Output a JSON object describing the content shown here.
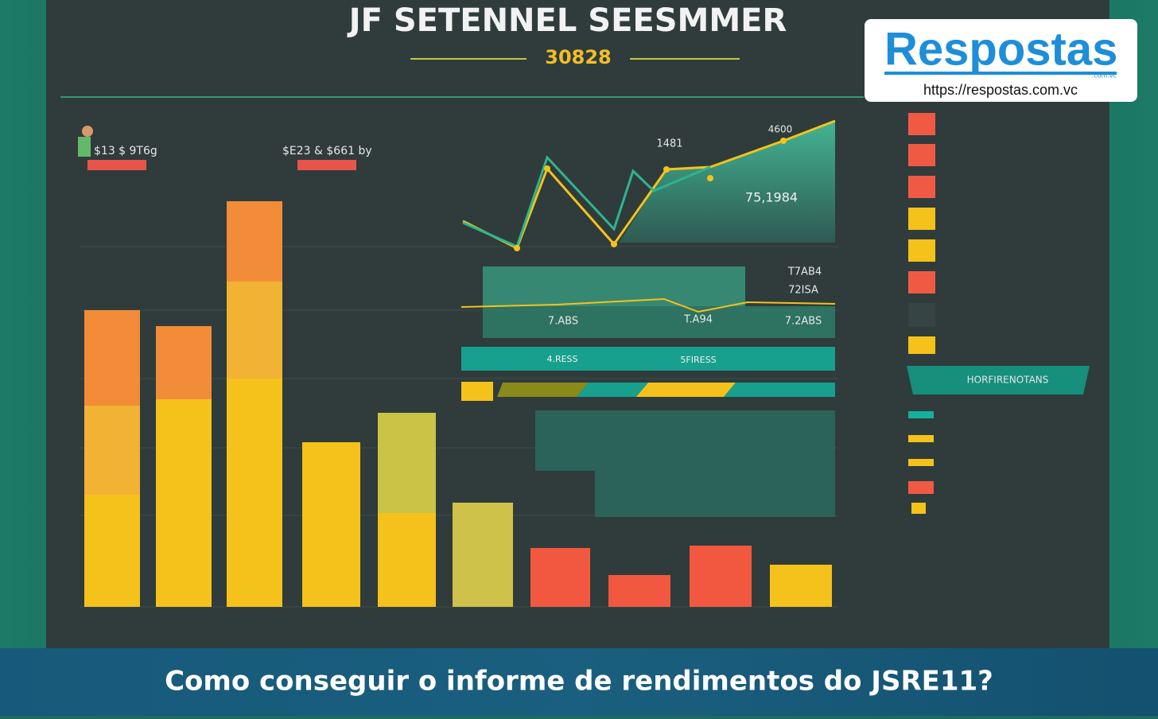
{
  "header": {
    "title": "JF SETENNEL SEESMMER",
    "subtitle": "30828"
  },
  "logo": {
    "brand": "Respostas",
    "suffix": ".com.vc",
    "url": "https://respostas.com.vc"
  },
  "labels": {
    "left_note": "$13 $ 9T6g",
    "mid_note": "$E23 & $661 by",
    "peak": "1481",
    "top": "4600",
    "area_value": "75,1984",
    "row1": "T7AB4",
    "row2": "72ISA",
    "row3a": "7.ABS",
    "row3b": "T.A94",
    "row3c": "7.2ABS",
    "band1": "4.RESS",
    "band2": "5FIRESS",
    "panel": "HORFIRENOTANS"
  },
  "caption": "Como conseguir o informe de rendimentos do JSRE11?"
}
